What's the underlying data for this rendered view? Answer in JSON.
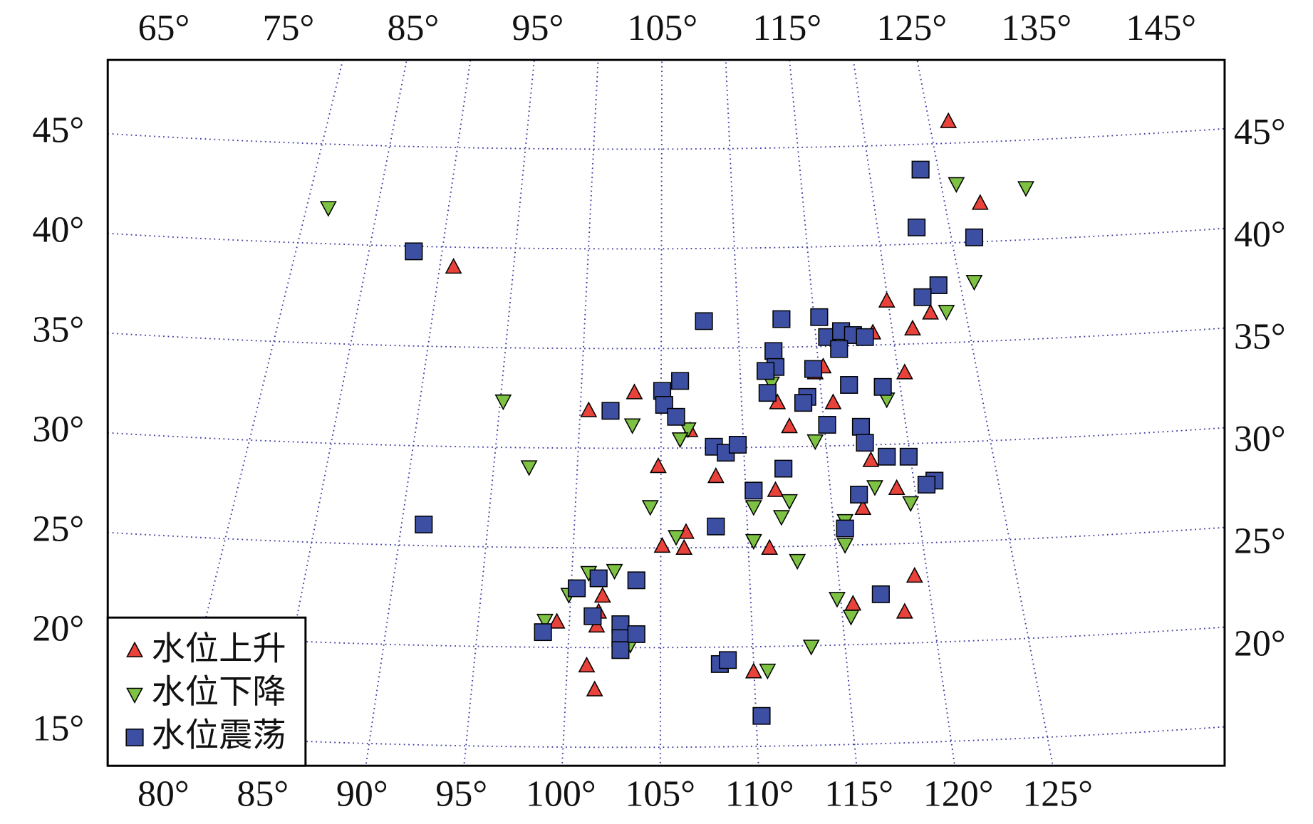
{
  "chart_data": {
    "type": "scatter",
    "xlim": [
      77.2,
      133.4
    ],
    "ylim": [
      13.3,
      48.7
    ],
    "x2lim": [
      60.5,
      150.1
    ],
    "y2lim": [
      14.2,
      48.7
    ],
    "xticks": [
      {
        "value": 80,
        "label": "80°"
      },
      {
        "value": 85,
        "label": "85°"
      },
      {
        "value": 90,
        "label": "90°"
      },
      {
        "value": 95,
        "label": "95°"
      },
      {
        "value": 100,
        "label": "100°"
      },
      {
        "value": 105,
        "label": "105°"
      },
      {
        "value": 110,
        "label": "110°"
      },
      {
        "value": 115,
        "label": "115°"
      },
      {
        "value": 120,
        "label": "120°"
      },
      {
        "value": 125,
        "label": "125°"
      }
    ],
    "yticks": [
      {
        "value": 15,
        "label": "15°"
      },
      {
        "value": 20,
        "label": "20°"
      },
      {
        "value": 25,
        "label": "25°"
      },
      {
        "value": 30,
        "label": "30°"
      },
      {
        "value": 35,
        "label": "35°"
      },
      {
        "value": 40,
        "label": "40°"
      },
      {
        "value": 45,
        "label": "45°"
      }
    ],
    "x2ticks": [
      {
        "value": 65,
        "label": "65°"
      },
      {
        "value": 75,
        "label": "75°"
      },
      {
        "value": 85,
        "label": "85°"
      },
      {
        "value": 95,
        "label": "95°"
      },
      {
        "value": 105,
        "label": "105°"
      },
      {
        "value": 115,
        "label": "115°"
      },
      {
        "value": 125,
        "label": "125°"
      },
      {
        "value": 135,
        "label": "135°"
      },
      {
        "value": 145,
        "label": "145°"
      }
    ],
    "y2ticks": [
      {
        "value": 20,
        "label": "20°"
      },
      {
        "value": 25,
        "label": "25°"
      },
      {
        "value": 30,
        "label": "30°"
      },
      {
        "value": 35,
        "label": "35°"
      },
      {
        "value": 40,
        "label": "40°"
      },
      {
        "value": 45,
        "label": "45°"
      }
    ],
    "grid": true,
    "legend": "lower left",
    "series": [
      {
        "name": "水位上升",
        "color": "#e8423a",
        "marker": "triangle-up",
        "x": [
          119.5,
          121.1,
          94.6,
          116.4,
          117.7,
          118.6,
          115.7,
          117.3,
          113.2,
          112.8,
          103.7,
          101.4,
          113.7,
          110.9,
          111.5,
          106.5,
          115.6,
          104.9,
          107.8,
          110.8,
          116.9,
          115.2,
          106.3,
          105.1,
          106.2,
          110.5,
          117.8,
          114.7,
          117.3,
          102.1,
          101.9,
          101.8,
          99.8,
          101.3,
          101.7,
          109.7
        ],
        "y": [
          45.6,
          41.5,
          38.3,
          36.6,
          35.2,
          36.0,
          35.0,
          33.0,
          33.3,
          33.0,
          32.0,
          31.1,
          31.5,
          31.5,
          30.3,
          30.1,
          28.6,
          28.3,
          27.8,
          27.1,
          27.2,
          26.2,
          25.0,
          24.3,
          24.2,
          24.2,
          22.8,
          21.4,
          21.0,
          21.8,
          21.0,
          20.3,
          20.5,
          18.3,
          17.1,
          18.0
        ]
      },
      {
        "name": "水位下降",
        "color": "#7dc242",
        "marker": "triangle-down",
        "x": [
          88.3,
          119.9,
          123.4,
          120.8,
          119.4,
          97.1,
          103.6,
          106.4,
          106.0,
          112.8,
          98.4,
          116.4,
          110.6,
          104.5,
          109.7,
          111.5,
          111.1,
          115.8,
          117.6,
          114.3,
          114.3,
          105.8,
          109.7,
          111.9,
          101.4,
          102.7,
          100.4,
          99.2,
          113.9,
          114.6,
          112.6,
          110.4,
          103.5
        ],
        "y": [
          41.3,
          42.5,
          42.3,
          37.6,
          36.1,
          31.6,
          30.4,
          30.2,
          29.7,
          29.6,
          28.3,
          31.7,
          32.5,
          26.3,
          26.3,
          26.6,
          25.8,
          27.3,
          26.5,
          25.6,
          24.4,
          24.8,
          24.6,
          23.6,
          23.0,
          23.1,
          21.9,
          20.6,
          21.7,
          20.8,
          19.3,
          18.1,
          19.4
        ]
      },
      {
        "name": "水位震荡",
        "color": "#3d4fa3",
        "marker": "square",
        "x": [
          118.1,
          117.9,
          120.8,
          92.6,
          119.0,
          118.2,
          107.2,
          111.1,
          113.0,
          113.4,
          114.1,
          114.7,
          115.3,
          114.0,
          110.7,
          110.8,
          110.3,
          112.7,
          114.5,
          116.2,
          110.4,
          112.4,
          112.2,
          113.4,
          115.1,
          115.3,
          116.4,
          117.5,
          118.8,
          118.4,
          115.0,
          114.3,
          111.2,
          109.7,
          107.7,
          108.3,
          108.9,
          107.8,
          105.1,
          106.0,
          105.2,
          105.8,
          102.5,
          93.1,
          103.8,
          101.9,
          100.8,
          101.6,
          103.0,
          103.0,
          103.0,
          103.8,
          99.1,
          116.1,
          108.0,
          108.4,
          110.1
        ],
        "y": [
          43.2,
          40.3,
          39.8,
          39.1,
          37.4,
          36.8,
          35.6,
          35.7,
          35.8,
          34.8,
          35.1,
          34.9,
          34.8,
          34.2,
          34.1,
          33.3,
          33.1,
          33.2,
          32.4,
          32.3,
          32.0,
          31.8,
          31.5,
          30.4,
          30.3,
          29.5,
          28.8,
          28.8,
          27.6,
          27.4,
          26.9,
          25.2,
          28.2,
          27.1,
          29.3,
          29.0,
          29.4,
          25.3,
          32.1,
          32.6,
          31.4,
          30.8,
          31.1,
          25.4,
          22.6,
          22.7,
          22.2,
          20.8,
          20.4,
          19.7,
          19.1,
          19.9,
          20.0,
          21.9,
          18.4,
          18.6,
          15.8
        ]
      }
    ]
  }
}
